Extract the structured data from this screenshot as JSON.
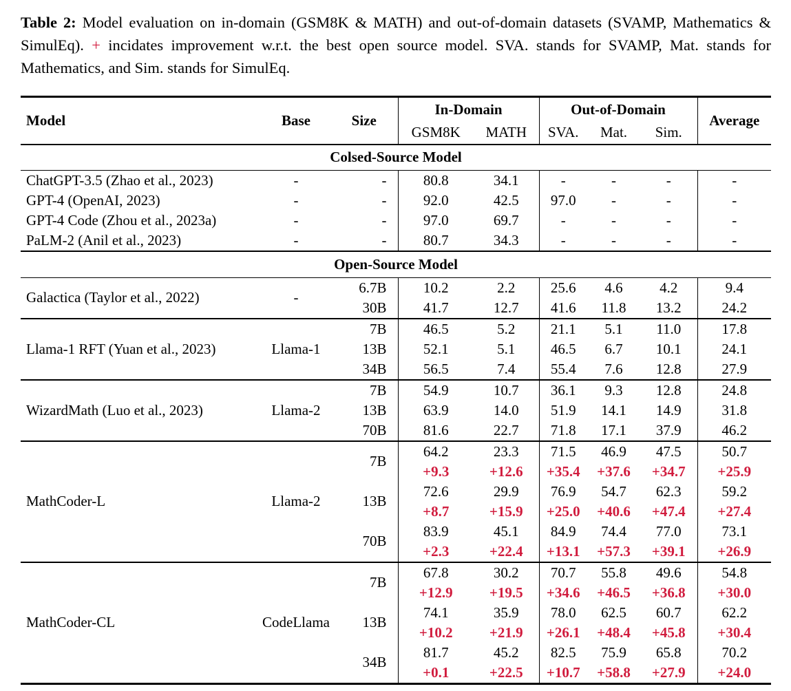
{
  "colors": {
    "delta_red": "#d11c3e",
    "text": "#000000",
    "rule": "#000000"
  },
  "caption": {
    "label": "Table 2:",
    "before_plus": "  Model evaluation on in-domain (GSM8K & MATH) and out-of-domain datasets (SVAMP, Mathematics & SimulEq). ",
    "plus": "+",
    "after_plus": " incidates improvement w.r.t. the best open source model. SVA. stands for SVAMP, Mat. stands for Mathematics, and Sim. stands for SimulEq."
  },
  "table": {
    "header": {
      "model": "Model",
      "base": "Base",
      "size": "Size",
      "in_domain": "In-Domain",
      "out_of_domain": "Out-of-Domain",
      "average": "Average",
      "sub_columns": [
        "GSM8K",
        "MATH",
        "SVA.",
        "Mat.",
        "Sim."
      ]
    },
    "sections": [
      {
        "title": "Colsed-Source Model",
        "groups": [
          {
            "model": "ChatGPT-3.5 (Zhao et al., 2023)",
            "base": "-",
            "entries": [
              {
                "size": "-",
                "values": [
                  "80.8",
                  "34.1",
                  "-",
                  "-",
                  "-",
                  "-"
                ]
              }
            ]
          },
          {
            "model": "GPT-4 (OpenAI, 2023)",
            "base": "-",
            "entries": [
              {
                "size": "-",
                "values": [
                  "92.0",
                  "42.5",
                  "97.0",
                  "-",
                  "-",
                  "-"
                ]
              }
            ]
          },
          {
            "model": "GPT-4 Code (Zhou et al., 2023a)",
            "base": "-",
            "entries": [
              {
                "size": "-",
                "values": [
                  "97.0",
                  "69.7",
                  "-",
                  "-",
                  "-",
                  "-"
                ]
              }
            ]
          },
          {
            "model": "PaLM-2 (Anil et al., 2023)",
            "base": "-",
            "entries": [
              {
                "size": "-",
                "values": [
                  "80.7",
                  "34.3",
                  "-",
                  "-",
                  "-",
                  "-"
                ]
              }
            ]
          }
        ]
      },
      {
        "title": "Open-Source Model",
        "groups": [
          {
            "model": "Galactica (Taylor et al., 2022)",
            "base": "-",
            "entries": [
              {
                "size": "6.7B",
                "values": [
                  "10.2",
                  "2.2",
                  "25.6",
                  "4.6",
                  "4.2",
                  "9.4"
                ]
              },
              {
                "size": "30B",
                "values": [
                  "41.7",
                  "12.7",
                  "41.6",
                  "11.8",
                  "13.2",
                  "24.2"
                ]
              }
            ]
          },
          {
            "model": "Llama-1 RFT (Yuan et al., 2023)",
            "base": "Llama-1",
            "entries": [
              {
                "size": "7B",
                "values": [
                  "46.5",
                  "5.2",
                  "21.1",
                  "5.1",
                  "11.0",
                  "17.8"
                ]
              },
              {
                "size": "13B",
                "values": [
                  "52.1",
                  "5.1",
                  "46.5",
                  "6.7",
                  "10.1",
                  "24.1"
                ]
              },
              {
                "size": "34B",
                "values": [
                  "56.5",
                  "7.4",
                  "55.4",
                  "7.6",
                  "12.8",
                  "27.9"
                ]
              }
            ]
          },
          {
            "model": "WizardMath (Luo et al., 2023)",
            "base": "Llama-2",
            "entries": [
              {
                "size": "7B",
                "values": [
                  "54.9",
                  "10.7",
                  "36.1",
                  "9.3",
                  "12.8",
                  "24.8"
                ]
              },
              {
                "size": "13B",
                "values": [
                  "63.9",
                  "14.0",
                  "51.9",
                  "14.1",
                  "14.9",
                  "31.8"
                ]
              },
              {
                "size": "70B",
                "values": [
                  "81.6",
                  "22.7",
                  "71.8",
                  "17.1",
                  "37.9",
                  "46.2"
                ]
              }
            ]
          },
          {
            "model": "MathCoder-L",
            "base": "Llama-2",
            "entries": [
              {
                "size": "7B",
                "values": [
                  "64.2",
                  "23.3",
                  "71.5",
                  "46.9",
                  "47.5",
                  "50.7"
                ],
                "deltas": [
                  "+9.3",
                  "+12.6",
                  "+35.4",
                  "+37.6",
                  "+34.7",
                  "+25.9"
                ]
              },
              {
                "size": "13B",
                "values": [
                  "72.6",
                  "29.9",
                  "76.9",
                  "54.7",
                  "62.3",
                  "59.2"
                ],
                "deltas": [
                  "+8.7",
                  "+15.9",
                  "+25.0",
                  "+40.6",
                  "+47.4",
                  "+27.4"
                ]
              },
              {
                "size": "70B",
                "values": [
                  "83.9",
                  "45.1",
                  "84.9",
                  "74.4",
                  "77.0",
                  "73.1"
                ],
                "deltas": [
                  "+2.3",
                  "+22.4",
                  "+13.1",
                  "+57.3",
                  "+39.1",
                  "+26.9"
                ]
              }
            ]
          },
          {
            "model": "MathCoder-CL",
            "base": "CodeLlama",
            "entries": [
              {
                "size": "7B",
                "values": [
                  "67.8",
                  "30.2",
                  "70.7",
                  "55.8",
                  "49.6",
                  "54.8"
                ],
                "deltas": [
                  "+12.9",
                  "+19.5",
                  "+34.6",
                  "+46.5",
                  "+36.8",
                  "+30.0"
                ]
              },
              {
                "size": "13B",
                "values": [
                  "74.1",
                  "35.9",
                  "78.0",
                  "62.5",
                  "60.7",
                  "62.2"
                ],
                "deltas": [
                  "+10.2",
                  "+21.9",
                  "+26.1",
                  "+48.4",
                  "+45.8",
                  "+30.4"
                ]
              },
              {
                "size": "34B",
                "values": [
                  "81.7",
                  "45.2",
                  "82.5",
                  "75.9",
                  "65.8",
                  "70.2"
                ],
                "deltas": [
                  "+0.1",
                  "+22.5",
                  "+10.7",
                  "+58.8",
                  "+27.9",
                  "+24.0"
                ]
              }
            ]
          }
        ]
      }
    ]
  }
}
